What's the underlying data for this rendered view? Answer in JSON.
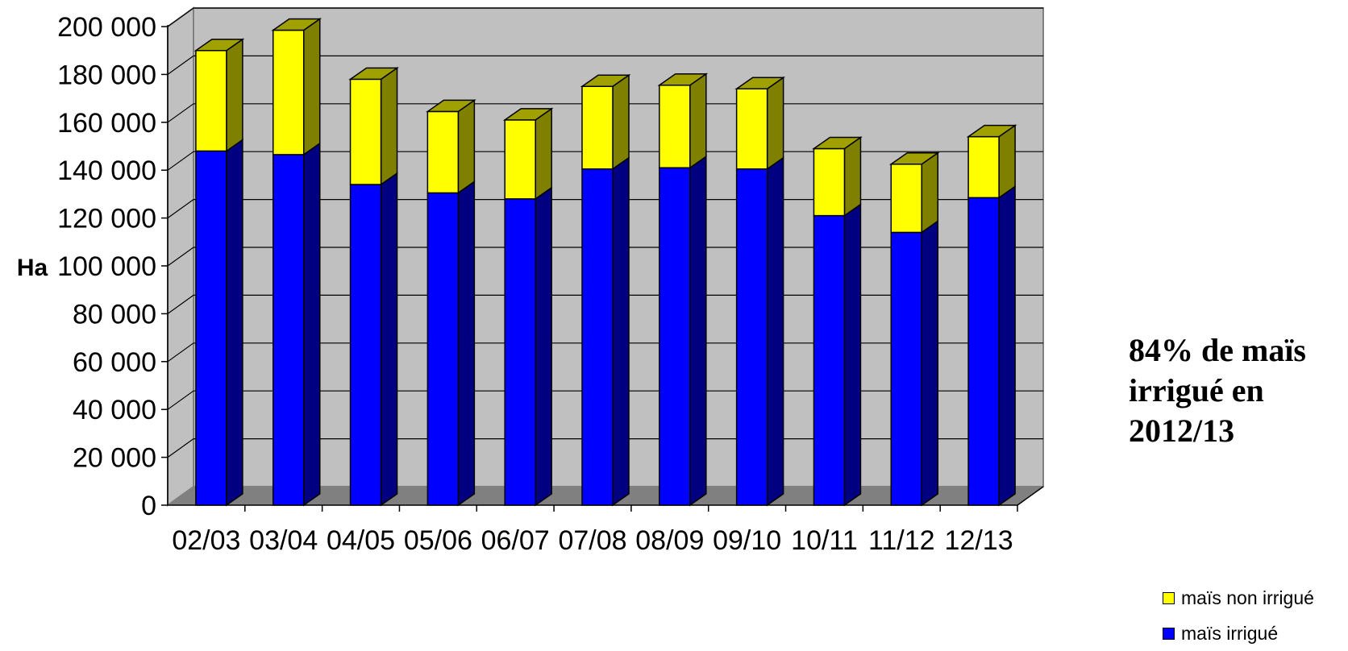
{
  "chart_data": {
    "type": "bar",
    "stacked": true,
    "three_d": true,
    "categories": [
      "02/03",
      "03/04",
      "04/05",
      "05/06",
      "06/07",
      "07/08",
      "08/09",
      "09/10",
      "10/11",
      "11/12",
      "12/13"
    ],
    "series": [
      {
        "name": "maïs irrigué",
        "color": "#0000ff",
        "values": [
          148000,
          146500,
          134000,
          130500,
          128000,
          140500,
          141000,
          140500,
          121000,
          114000,
          128500
        ]
      },
      {
        "name": "maïs non irrigué",
        "color": "#ffff00",
        "values": [
          42000,
          52000,
          44000,
          34000,
          33000,
          34500,
          34500,
          33500,
          28000,
          28500,
          25500
        ]
      }
    ],
    "ylabel": "Ha",
    "ylim": [
      0,
      200000
    ],
    "ytick_step": 20000,
    "yticks": [
      "0",
      "20 000",
      "40 000",
      "60 000",
      "80 000",
      "100 000",
      "120 000",
      "140 000",
      "160 000",
      "180 000",
      "200 000"
    ],
    "grid": true,
    "annotation": [
      "84% de maïs",
      "irrigué en",
      "2012/13"
    ],
    "legend_position": "bottom-right"
  }
}
